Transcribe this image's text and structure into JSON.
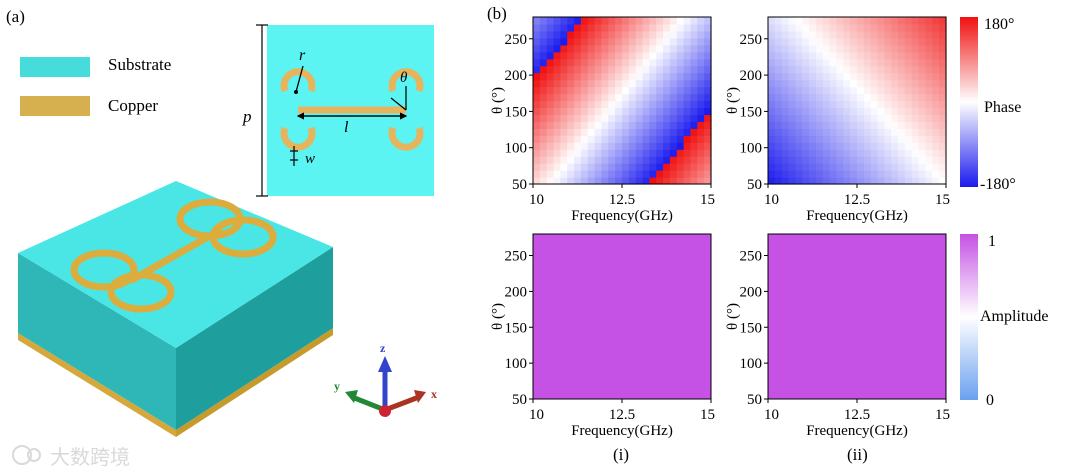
{
  "panel_a": {
    "label": "(a)",
    "legend": [
      {
        "name": "Substrate",
        "color": "#46dcdc"
      },
      {
        "name": "Copper",
        "color": "#d6b04e"
      }
    ],
    "dimension_symbols": {
      "p": "p",
      "r": "r",
      "theta": "θ",
      "l": "l",
      "w": "w"
    },
    "axes_triad": {
      "z": "z",
      "y": "y",
      "x": "x"
    },
    "watermark": "大数跨境"
  },
  "panel_b": {
    "label": "(b)",
    "column_labels": [
      "(i)",
      "(ii)"
    ],
    "phase_colorbar": {
      "title": "Phase",
      "max_label": "180°",
      "min_label": "-180°"
    },
    "amplitude_colorbar": {
      "title": "Amplitude",
      "max_label": "1",
      "min_label": "0"
    }
  },
  "colors": {
    "substrate": "#46dcdc",
    "copper": "#d6b04e",
    "amplitude_fill": "#c552e4",
    "phase_max": "#f01010",
    "phase_mid": "#ffffff",
    "phase_min": "#1a1aee",
    "amp_max": "#c552e4",
    "amp_mid": "#ffffff",
    "amp_min": "#6aa0f0"
  },
  "chart_data": [
    {
      "type": "heatmap",
      "id": "phase-i",
      "xlabel": "Frequency(GHz)",
      "ylabel": "θ (°)",
      "xlim": [
        10,
        15
      ],
      "ylim": [
        50,
        280
      ],
      "xticks": [
        10,
        12.5,
        15
      ],
      "xtick_labels": [
        "10",
        "12.5",
        "15"
      ],
      "yticks": [
        50,
        100,
        150,
        200,
        250
      ],
      "value": "phase (deg)",
      "phase_model": {
        "phase_at_f10_theta50": 30,
        "d_phase_d_freq": -64,
        "d_phase_d_theta": 1.05
      }
    },
    {
      "type": "heatmap",
      "id": "phase-ii",
      "xlabel": "Frequency(GHz)",
      "ylabel": "θ (°)",
      "xlim": [
        10,
        15
      ],
      "ylim": [
        50,
        280
      ],
      "xticks": [
        10,
        12.5,
        15
      ],
      "xtick_labels": [
        "10",
        "12.5",
        "15"
      ],
      "yticks": [
        50,
        100,
        150,
        200,
        250
      ],
      "value": "phase (deg)",
      "phase_model": {
        "phase_at_f10_theta50": -180,
        "d_phase_d_freq": 36,
        "d_phase_d_theta": 0.67
      }
    },
    {
      "type": "heatmap",
      "id": "amplitude-i",
      "xlabel": "Frequency(GHz)",
      "ylabel": "θ (°)",
      "xlim": [
        10,
        15
      ],
      "ylim": [
        50,
        280
      ],
      "xticks": [
        10,
        12.5,
        15
      ],
      "xtick_labels": [
        "10",
        "12.5",
        "15"
      ],
      "yticks": [
        50,
        100,
        150,
        200,
        250
      ],
      "value": "amplitude",
      "amplitude": 1
    },
    {
      "type": "heatmap",
      "id": "amplitude-ii",
      "xlabel": "Frequency(GHz)",
      "ylabel": "θ (°)",
      "xlim": [
        10,
        15
      ],
      "ylim": [
        50,
        280
      ],
      "xticks": [
        10,
        12.5,
        15
      ],
      "xtick_labels": [
        "10",
        "12.5",
        "15"
      ],
      "yticks": [
        50,
        100,
        150,
        200,
        250
      ],
      "value": "amplitude",
      "amplitude": 1
    }
  ]
}
